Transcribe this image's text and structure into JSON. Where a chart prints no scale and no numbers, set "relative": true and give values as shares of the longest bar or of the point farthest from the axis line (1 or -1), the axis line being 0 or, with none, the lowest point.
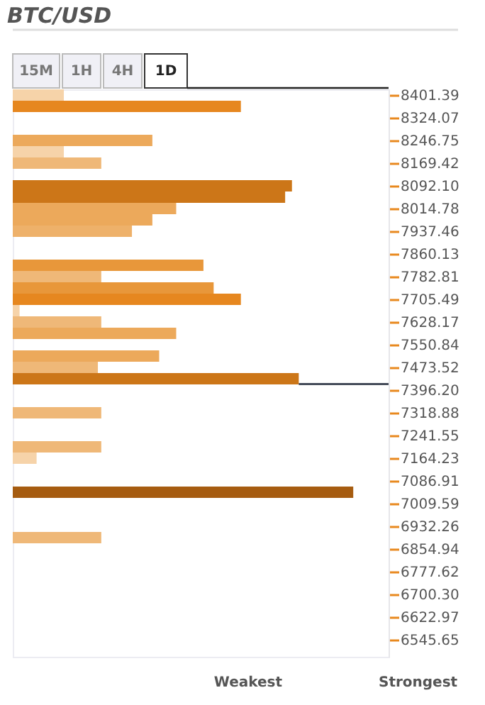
{
  "chart_data": {
    "type": "bar",
    "title": "BTC/USD",
    "orientation": "horizontal",
    "relative": true,
    "x": [
      8401.39,
      8362.73,
      8246.75,
      8208.08,
      8169.42,
      8092.1,
      8053.44,
      8014.78,
      7976.12,
      7937.46,
      7821.47,
      7782.81,
      7744.15,
      7705.49,
      7666.83,
      7628.17,
      7589.51,
      7512.18,
      7473.52,
      7434.86,
      7318.88,
      7202.89,
      7164.23,
      7048.25,
      6893.6
    ],
    "values": [
      0.15,
      0.67,
      0.41,
      0.15,
      0.26,
      0.82,
      0.8,
      0.48,
      0.41,
      0.35,
      0.56,
      0.26,
      0.59,
      0.67,
      0.02,
      0.26,
      0.48,
      0.43,
      0.25,
      0.84,
      0.26,
      0.26,
      0.07,
      1,
      0.26
    ],
    "colors": [
      "#f6d3a9",
      "#e6871f",
      "#eca95b",
      "#f6d3a9",
      "#efb878",
      "#cc7618",
      "#cc7618",
      "#eca95b",
      "#eca95b",
      "#eeb16a",
      "#e8973a",
      "#efb878",
      "#e8973a",
      "#e6871f",
      "#f6d3a9",
      "#efb878",
      "#eca95b",
      "#eca95b",
      "#efb878",
      "#cc7618",
      "#efb878",
      "#efb878",
      "#f6d3a9",
      "#a65c10",
      "#efb878"
    ],
    "ylim": [
      6487.66,
      8420.72
    ],
    "yticks": [
      8401.39,
      8324.07,
      8246.75,
      8169.42,
      {
        "value": 8092.1,
        "label": "8092.10"
      },
      8014.78,
      7937.46,
      7860.13,
      7782.81,
      7705.49,
      7628.17,
      7550.84,
      7473.52,
      {
        "value": 7396.2,
        "label": "7396.20"
      },
      7318.88,
      7241.55,
      7164.23,
      7086.91,
      7009.59,
      6932.26,
      6854.94,
      6777.62,
      {
        "value": 6700.3,
        "label": "6700.30"
      },
      6622.97,
      6545.65
    ],
    "ref_lines": [
      {
        "axis": "y",
        "value": 7417,
        "color": "#444b59"
      }
    ],
    "annotations": [
      "15M",
      "1H",
      "4H",
      "1D",
      "Weakest",
      "Strongest"
    ],
    "grid": false
  }
}
